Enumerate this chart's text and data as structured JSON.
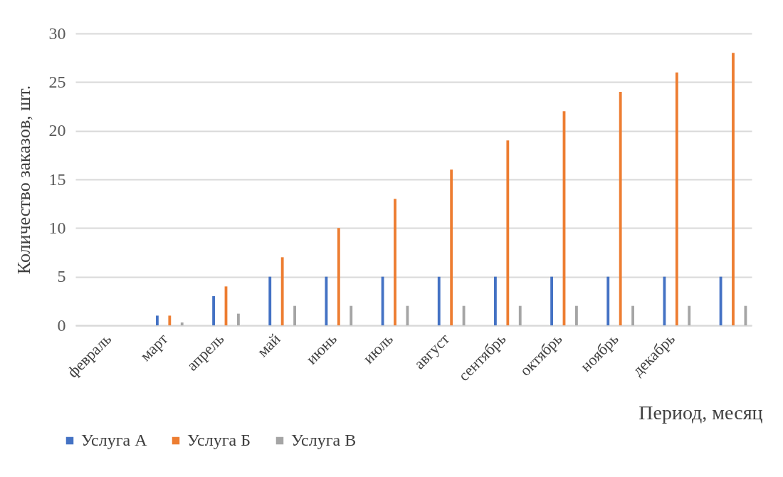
{
  "chart_data": {
    "type": "bar",
    "xlabel": "Период, месяц",
    "ylabel": "Количество заказов, шт.",
    "categories": [
      "февраль",
      "март",
      "апрель",
      "май",
      "июнь",
      "июль",
      "август",
      "сентябрь",
      "октябрь",
      "ноябрь",
      "декабрь",
      null
    ],
    "series": [
      {
        "name": "Услуга А",
        "color": "#4472c4",
        "values": [
          0,
          1,
          3,
          5,
          5,
          5,
          5,
          5,
          5,
          5,
          5,
          5
        ]
      },
      {
        "name": "Услуга Б",
        "color": "#ed7d31",
        "values": [
          0,
          1,
          4,
          7,
          10,
          13,
          16,
          19,
          22,
          24,
          26,
          28
        ]
      },
      {
        "name": "Услуга В",
        "color": "#a5a5a5",
        "values": [
          0,
          0.3,
          1.2,
          2,
          2,
          2,
          2,
          2,
          2,
          2,
          2,
          2
        ]
      }
    ],
    "ylim": [
      0,
      30
    ],
    "yticks": [
      0,
      5,
      10,
      15,
      20,
      25,
      30
    ],
    "grid": "y",
    "legend": "bottom left"
  }
}
